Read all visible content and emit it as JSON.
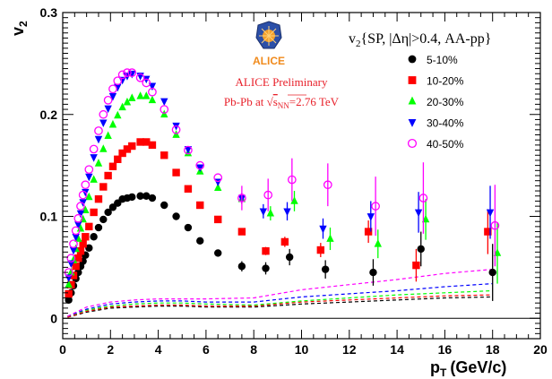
{
  "chart_data": {
    "type": "scatter",
    "xlabel": "p",
    "xlabel_sub": "T",
    "xlabel_unit": "(GeV/c)",
    "ylabel": "v",
    "ylabel_sub": "2",
    "xlim": [
      0,
      20
    ],
    "ylim": [
      -0.02,
      0.3
    ],
    "x_ticks": [
      0,
      2,
      4,
      6,
      8,
      10,
      12,
      14,
      16,
      18,
      20
    ],
    "y_ticks": [
      0,
      0.1,
      0.2,
      0.3
    ],
    "y_tick_labels": [
      "0",
      "0.1",
      "0.2",
      "0.3"
    ],
    "logo_text": "ALICE",
    "prelim_line1": "ALICE Preliminary",
    "prelim_line2_pre": "Pb-Pb at ",
    "prelim_sqrt_sub": "NN",
    "prelim_line2_post": "=2.76 TeV",
    "legend_title_v": "v",
    "legend_title_sub": "2",
    "legend_title_rest": "{SP, |Δη|>0.4, AA-pp}",
    "legend_placement": "top-right",
    "series": [
      {
        "name": "5-10%",
        "color": "#000000",
        "marker": "circle-filled",
        "points": [
          [
            0.25,
            0.018
          ],
          [
            0.35,
            0.025
          ],
          [
            0.45,
            0.032
          ],
          [
            0.55,
            0.039
          ],
          [
            0.65,
            0.045
          ],
          [
            0.75,
            0.051
          ],
          [
            0.85,
            0.056
          ],
          [
            0.95,
            0.062
          ],
          [
            1.1,
            0.069
          ],
          [
            1.3,
            0.08
          ],
          [
            1.5,
            0.089
          ],
          [
            1.7,
            0.097
          ],
          [
            1.9,
            0.104
          ],
          [
            2.1,
            0.109
          ],
          [
            2.3,
            0.113
          ],
          [
            2.5,
            0.117
          ],
          [
            2.7,
            0.118
          ],
          [
            2.9,
            0.119
          ],
          [
            3.25,
            0.12
          ],
          [
            3.5,
            0.12
          ],
          [
            3.75,
            0.118
          ],
          [
            4.25,
            0.111
          ],
          [
            4.75,
            0.1
          ],
          [
            5.25,
            0.089
          ],
          [
            5.75,
            0.076
          ],
          [
            6.5,
            0.064
          ],
          [
            7.5,
            0.051
          ],
          [
            8.5,
            0.049
          ],
          [
            9.5,
            0.06
          ],
          [
            11,
            0.048
          ],
          [
            13,
            0.045
          ],
          [
            15,
            0.068
          ],
          [
            18,
            0.045
          ]
        ],
        "err": [
          0,
          0,
          0,
          0,
          0,
          0,
          0,
          0,
          0,
          0,
          0,
          0,
          0,
          0,
          0,
          0,
          0,
          0,
          0,
          0,
          0,
          0,
          0,
          0,
          0,
          0,
          0.005,
          0.006,
          0.008,
          0.009,
          0.013,
          0.017,
          0.028
        ]
      },
      {
        "name": "10-20%",
        "color": "#ff0000",
        "marker": "square-filled",
        "points": [
          [
            0.25,
            0.024
          ],
          [
            0.35,
            0.033
          ],
          [
            0.45,
            0.042
          ],
          [
            0.55,
            0.051
          ],
          [
            0.65,
            0.059
          ],
          [
            0.75,
            0.066
          ],
          [
            0.85,
            0.073
          ],
          [
            0.95,
            0.08
          ],
          [
            1.1,
            0.09
          ],
          [
            1.3,
            0.104
          ],
          [
            1.5,
            0.117
          ],
          [
            1.7,
            0.129
          ],
          [
            1.9,
            0.14
          ],
          [
            2.1,
            0.149
          ],
          [
            2.3,
            0.156
          ],
          [
            2.5,
            0.162
          ],
          [
            2.7,
            0.166
          ],
          [
            2.9,
            0.169
          ],
          [
            3.25,
            0.173
          ],
          [
            3.5,
            0.173
          ],
          [
            3.75,
            0.17
          ],
          [
            4.25,
            0.16
          ],
          [
            4.75,
            0.143
          ],
          [
            5.25,
            0.127
          ],
          [
            5.75,
            0.111
          ],
          [
            6.5,
            0.097
          ],
          [
            7.5,
            0.085
          ],
          [
            8.5,
            0.066
          ],
          [
            9.3,
            0.075
          ],
          [
            10.8,
            0.067
          ],
          [
            12.8,
            0.085
          ],
          [
            14.8,
            0.052
          ],
          [
            17.8,
            0.085
          ]
        ],
        "err": [
          0,
          0,
          0,
          0,
          0,
          0,
          0,
          0,
          0,
          0,
          0,
          0,
          0,
          0,
          0,
          0,
          0,
          0,
          0,
          0,
          0,
          0,
          0,
          0,
          0,
          0,
          0.003,
          0.004,
          0.005,
          0.007,
          0.011,
          0.016,
          0.022
        ]
      },
      {
        "name": "20-30%",
        "color": "#00ff00",
        "marker": "triangle-up-filled",
        "points": [
          [
            0.25,
            0.033
          ],
          [
            0.35,
            0.045
          ],
          [
            0.45,
            0.057
          ],
          [
            0.55,
            0.068
          ],
          [
            0.65,
            0.078
          ],
          [
            0.75,
            0.088
          ],
          [
            0.85,
            0.097
          ],
          [
            0.95,
            0.106
          ],
          [
            1.1,
            0.119
          ],
          [
            1.3,
            0.136
          ],
          [
            1.5,
            0.152
          ],
          [
            1.7,
            0.166
          ],
          [
            1.9,
            0.179
          ],
          [
            2.1,
            0.19
          ],
          [
            2.3,
            0.199
          ],
          [
            2.5,
            0.207
          ],
          [
            2.7,
            0.212
          ],
          [
            2.9,
            0.216
          ],
          [
            3.25,
            0.218
          ],
          [
            3.5,
            0.218
          ],
          [
            3.75,
            0.214
          ],
          [
            4.25,
            0.2
          ],
          [
            4.75,
            0.18
          ],
          [
            5.25,
            0.162
          ],
          [
            5.75,
            0.144
          ],
          [
            6.5,
            0.128
          ],
          [
            7.5,
            0.117
          ],
          [
            8.7,
            0.103
          ],
          [
            9.7,
            0.115
          ],
          [
            11.2,
            0.078
          ],
          [
            13.2,
            0.073
          ],
          [
            15.2,
            0.097
          ],
          [
            18.2,
            0.064
          ]
        ],
        "err": [
          0,
          0,
          0,
          0,
          0,
          0,
          0,
          0,
          0,
          0,
          0,
          0,
          0,
          0,
          0,
          0,
          0,
          0,
          0,
          0,
          0,
          0,
          0,
          0,
          0,
          0,
          0.005,
          0.007,
          0.01,
          0.011,
          0.014,
          0.02,
          0.03
        ]
      },
      {
        "name": "30-40%",
        "color": "#0000ff",
        "marker": "triangle-down-filled",
        "points": [
          [
            0.25,
            0.04
          ],
          [
            0.35,
            0.054
          ],
          [
            0.45,
            0.067
          ],
          [
            0.55,
            0.08
          ],
          [
            0.65,
            0.092
          ],
          [
            0.75,
            0.103
          ],
          [
            0.85,
            0.114
          ],
          [
            0.95,
            0.124
          ],
          [
            1.1,
            0.139
          ],
          [
            1.3,
            0.158
          ],
          [
            1.5,
            0.176
          ],
          [
            1.7,
            0.192
          ],
          [
            1.9,
            0.206
          ],
          [
            2.1,
            0.218
          ],
          [
            2.3,
            0.227
          ],
          [
            2.5,
            0.234
          ],
          [
            2.7,
            0.238
          ],
          [
            2.9,
            0.24
          ],
          [
            3.25,
            0.238
          ],
          [
            3.5,
            0.235
          ],
          [
            3.75,
            0.228
          ],
          [
            4.25,
            0.213
          ],
          [
            4.75,
            0.189
          ],
          [
            5.25,
            0.166
          ],
          [
            5.75,
            0.148
          ],
          [
            6.5,
            0.134
          ],
          [
            7.5,
            0.118
          ],
          [
            8.4,
            0.105
          ],
          [
            9.4,
            0.105
          ],
          [
            10.9,
            0.088
          ],
          [
            12.9,
            0.1
          ],
          [
            14.9,
            0.104
          ],
          [
            17.9,
            0.104
          ]
        ],
        "err": [
          0,
          0,
          0,
          0,
          0,
          0,
          0,
          0,
          0,
          0,
          0,
          0,
          0,
          0,
          0,
          0,
          0,
          0,
          0,
          0,
          0,
          0,
          0,
          0,
          0,
          0,
          0.005,
          0.007,
          0.009,
          0.01,
          0.015,
          0.02,
          0.026
        ]
      },
      {
        "name": "40-50%",
        "color": "#ff00ff",
        "marker": "circle-open",
        "points": [
          [
            0.25,
            0.045
          ],
          [
            0.35,
            0.059
          ],
          [
            0.45,
            0.073
          ],
          [
            0.55,
            0.086
          ],
          [
            0.65,
            0.098
          ],
          [
            0.75,
            0.11
          ],
          [
            0.85,
            0.121
          ],
          [
            0.95,
            0.131
          ],
          [
            1.1,
            0.146
          ],
          [
            1.3,
            0.166
          ],
          [
            1.5,
            0.184
          ],
          [
            1.7,
            0.2
          ],
          [
            1.9,
            0.214
          ],
          [
            2.1,
            0.225
          ],
          [
            2.3,
            0.233
          ],
          [
            2.5,
            0.239
          ],
          [
            2.7,
            0.241
          ],
          [
            2.9,
            0.241
          ],
          [
            3.25,
            0.236
          ],
          [
            3.5,
            0.231
          ],
          [
            3.75,
            0.222
          ],
          [
            4.25,
            0.205
          ],
          [
            4.75,
            0.185
          ],
          [
            5.25,
            0.165
          ],
          [
            5.75,
            0.15
          ],
          [
            6.5,
            0.138
          ],
          [
            7.5,
            0.118
          ],
          [
            8.6,
            0.121
          ],
          [
            9.6,
            0.136
          ],
          [
            11.1,
            0.131
          ],
          [
            13.1,
            0.11
          ],
          [
            15.1,
            0.118
          ],
          [
            18.1,
            0.091
          ]
        ],
        "err": [
          0,
          0,
          0,
          0,
          0,
          0,
          0,
          0,
          0,
          0,
          0,
          0,
          0,
          0,
          0,
          0,
          0,
          0,
          0,
          0,
          0,
          0,
          0,
          0,
          0,
          0,
          0.012,
          0.016,
          0.021,
          0.021,
          0.029,
          0.035,
          0.04
        ]
      }
    ],
    "dashed_lines": [
      {
        "color": "#000000",
        "points": [
          [
            0.2,
            0.001
          ],
          [
            1,
            0.006
          ],
          [
            2,
            0.01
          ],
          [
            3,
            0.011
          ],
          [
            4,
            0.012
          ],
          [
            5,
            0.012
          ],
          [
            6,
            0.011
          ],
          [
            8,
            0.011
          ],
          [
            10,
            0.014
          ],
          [
            12,
            0.016
          ],
          [
            14,
            0.018
          ],
          [
            16,
            0.02
          ],
          [
            18,
            0.021
          ]
        ]
      },
      {
        "color": "#ff0000",
        "points": [
          [
            0.2,
            0.001
          ],
          [
            1,
            0.007
          ],
          [
            2,
            0.011
          ],
          [
            3,
            0.012
          ],
          [
            4,
            0.013
          ],
          [
            5,
            0.013
          ],
          [
            6,
            0.012
          ],
          [
            8,
            0.012
          ],
          [
            10,
            0.016
          ],
          [
            12,
            0.018
          ],
          [
            14,
            0.02
          ],
          [
            16,
            0.022
          ],
          [
            18,
            0.023
          ]
        ]
      },
      {
        "color": "#00ff00",
        "points": [
          [
            0.2,
            0.002
          ],
          [
            1,
            0.008
          ],
          [
            2,
            0.012
          ],
          [
            3,
            0.014
          ],
          [
            4,
            0.015
          ],
          [
            5,
            0.015
          ],
          [
            6,
            0.014
          ],
          [
            8,
            0.013
          ],
          [
            10,
            0.017
          ],
          [
            12,
            0.02
          ],
          [
            14,
            0.023
          ],
          [
            16,
            0.025
          ],
          [
            18,
            0.027
          ]
        ]
      },
      {
        "color": "#0000ff",
        "points": [
          [
            0.2,
            0.002
          ],
          [
            1,
            0.009
          ],
          [
            2,
            0.014
          ],
          [
            3,
            0.016
          ],
          [
            4,
            0.017
          ],
          [
            5,
            0.017
          ],
          [
            6,
            0.016
          ],
          [
            8,
            0.016
          ],
          [
            10,
            0.021
          ],
          [
            12,
            0.024
          ],
          [
            14,
            0.027
          ],
          [
            16,
            0.031
          ],
          [
            18,
            0.034
          ]
        ]
      },
      {
        "color": "#ff00ff",
        "points": [
          [
            0.2,
            0.002
          ],
          [
            1,
            0.011
          ],
          [
            2,
            0.016
          ],
          [
            3,
            0.018
          ],
          [
            4,
            0.019
          ],
          [
            5,
            0.019
          ],
          [
            6,
            0.019
          ],
          [
            8,
            0.02
          ],
          [
            10,
            0.028
          ],
          [
            12,
            0.033
          ],
          [
            14,
            0.038
          ],
          [
            16,
            0.044
          ],
          [
            18,
            0.048
          ]
        ]
      }
    ]
  }
}
